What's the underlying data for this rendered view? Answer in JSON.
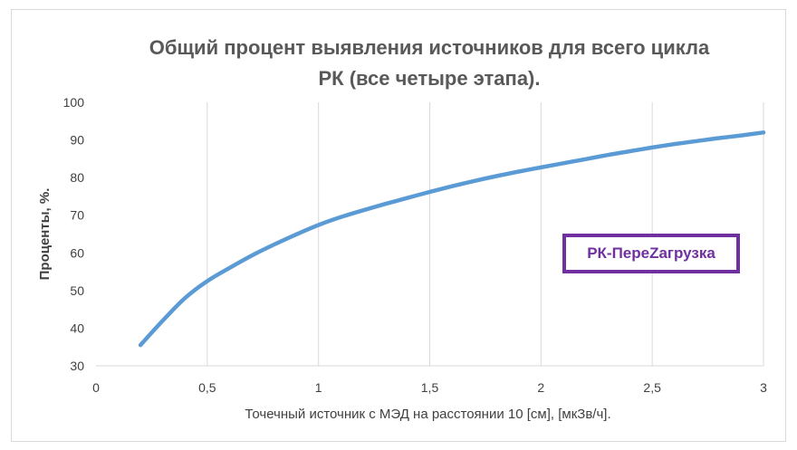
{
  "chart_data": {
    "type": "line",
    "title_lines": [
      "Общий процент выявления источников для всего цикла",
      "РК (все четыре этапа)."
    ],
    "xlabel": "Точечный источник с МЭД на расстоянии 10 [см], [мкЗв/ч].",
    "ylabel": "Проценты, %.",
    "xlim": [
      0,
      3
    ],
    "ylim": [
      30,
      100
    ],
    "x_ticks": [
      0,
      0.5,
      1,
      1.5,
      2,
      2.5,
      3
    ],
    "x_tick_labels": [
      "0",
      "0,5",
      "1",
      "1,5",
      "2",
      "2,5",
      "3"
    ],
    "y_ticks": [
      30,
      40,
      50,
      60,
      70,
      80,
      90,
      100
    ],
    "y_tick_labels": [
      "30",
      "40",
      "50",
      "60",
      "70",
      "80",
      "90",
      "100"
    ],
    "grid": "vertical",
    "line_color": "#5b9bd5",
    "series": [
      {
        "x": [
          0.2,
          0.3,
          0.4,
          0.5,
          0.6,
          0.7,
          0.8,
          0.9,
          1.0,
          1.1,
          1.2,
          1.3,
          1.4,
          1.5,
          1.6,
          1.7,
          1.8,
          1.9,
          2.0,
          2.1,
          2.2,
          2.3,
          2.4,
          2.5,
          2.6,
          2.7,
          2.8,
          2.9,
          3.0
        ],
        "values": [
          35.5,
          42,
          48,
          52.5,
          56,
          59.3,
          62.2,
          64.9,
          67.4,
          69.5,
          71.3,
          73.0,
          74.6,
          76.2,
          77.7,
          79.1,
          80.4,
          81.6,
          82.7,
          83.8,
          84.9,
          86.0,
          87.0,
          88.0,
          88.9,
          89.7,
          90.5,
          91.2,
          92.0
        ]
      }
    ],
    "annotation": "РК-ПереZагрузка",
    "annotation_color": "#7030a0"
  }
}
